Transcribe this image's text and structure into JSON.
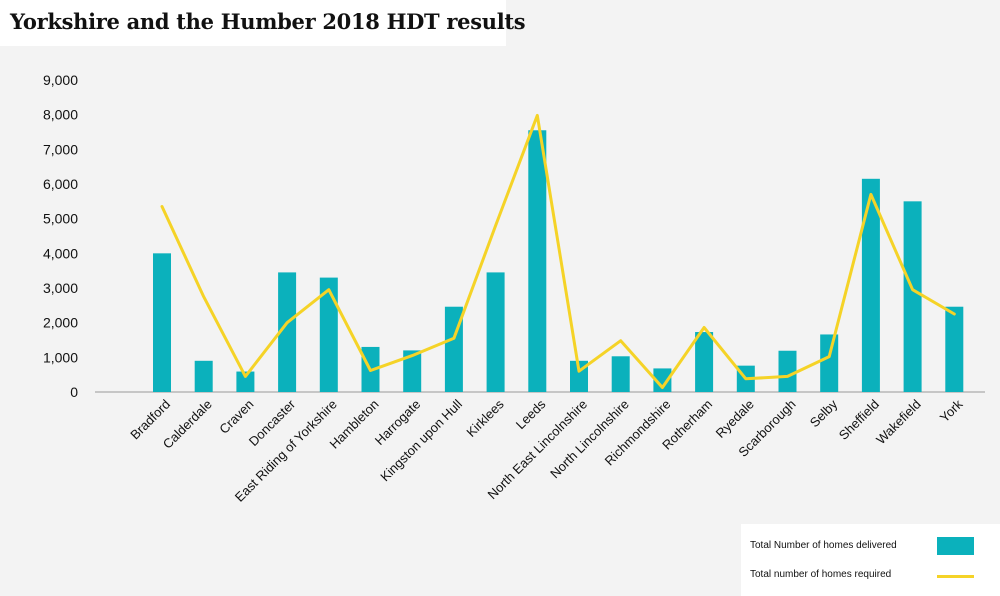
{
  "title": "Yorkshire and the Humber 2018 HDT results",
  "chart_data": {
    "type": "bar",
    "categories": [
      "Bradford",
      "Calderdale",
      "Craven",
      "Doncaster",
      "East Riding of Yorkshire",
      "Hambleton",
      "Harrogate",
      "Kingston upon Hull",
      "Kirklees",
      "Leeds",
      "North East Lincolnshire",
      "North Lincolnshire",
      "Richmondshire",
      "Rotherham",
      "Ryedale",
      "Scarborough",
      "Selby",
      "Sheffield",
      "Wakefield",
      "York"
    ],
    "series": [
      {
        "name": "Total Number of homes delivered",
        "type": "bar",
        "color": "#0bb1bc",
        "values": [
          4000,
          900,
          590,
          3450,
          3300,
          1300,
          1200,
          2460,
          3450,
          7550,
          900,
          1030,
          680,
          1730,
          760,
          1190,
          1660,
          6150,
          5500,
          2460
        ]
      },
      {
        "name": "Total number of homes required",
        "type": "line",
        "color": "#f5d327",
        "values": [
          5350,
          2750,
          450,
          2000,
          2950,
          620,
          1050,
          1550,
          4800,
          7980,
          600,
          1480,
          130,
          1860,
          380,
          450,
          1020,
          5700,
          2950,
          2250
        ]
      }
    ],
    "yticks": [
      "0",
      "1,000",
      "2,000",
      "3,000",
      "4,000",
      "5,000",
      "6,000",
      "7,000",
      "8,000",
      "9,000"
    ],
    "ylim": [
      0,
      9000
    ],
    "grid": false,
    "legend_position": "bottom-right"
  }
}
